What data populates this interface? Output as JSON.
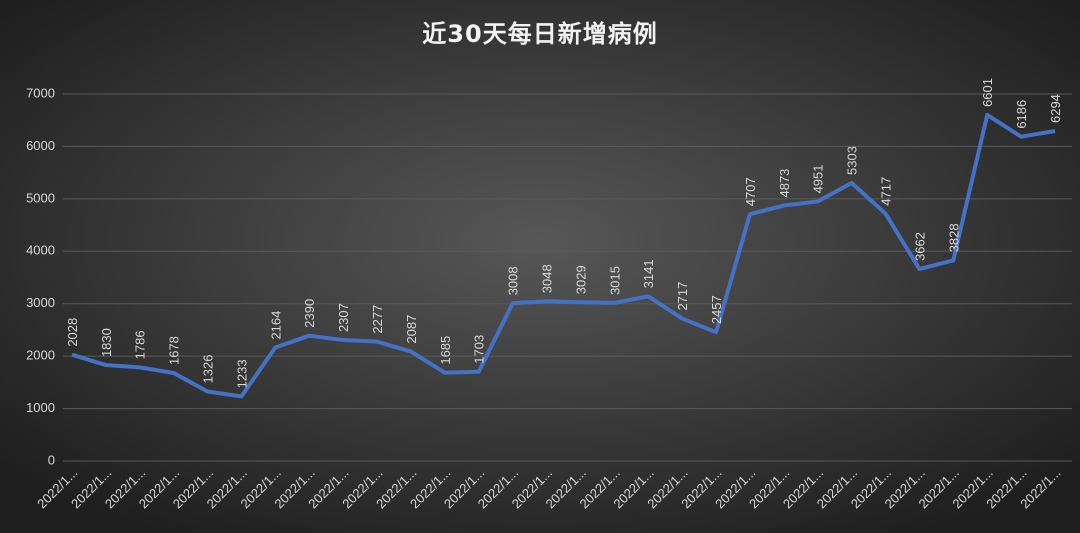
{
  "chart_data": {
    "type": "line",
    "title": "近30天每日新增病例",
    "categories": [
      "2022/1...",
      "2022/1...",
      "2022/1...",
      "2022/1...",
      "2022/1...",
      "2022/1...",
      "2022/1...",
      "2022/1...",
      "2022/1...",
      "2022/1...",
      "2022/1...",
      "2022/1...",
      "2022/1...",
      "2022/1...",
      "2022/1...",
      "2022/1...",
      "2022/1...",
      "2022/1...",
      "2022/1...",
      "2022/1...",
      "2022/1...",
      "2022/1...",
      "2022/1...",
      "2022/1...",
      "2022/1...",
      "2022/1...",
      "2022/1...",
      "2022/1...",
      "2022/1...",
      "2022/1..."
    ],
    "values": [
      2028,
      1830,
      1786,
      1678,
      1326,
      1233,
      2164,
      2390,
      2307,
      2277,
      2087,
      1685,
      1703,
      3008,
      3048,
      3029,
      3015,
      3141,
      2717,
      2457,
      4707,
      4873,
      4951,
      5303,
      4717,
      3662,
      3828,
      6601,
      6186,
      6294
    ],
    "color": "#4472c4",
    "ylim": [
      0,
      7000
    ],
    "yticks": [
      0,
      1000,
      2000,
      3000,
      4000,
      5000,
      6000,
      7000
    ],
    "grid": true
  }
}
